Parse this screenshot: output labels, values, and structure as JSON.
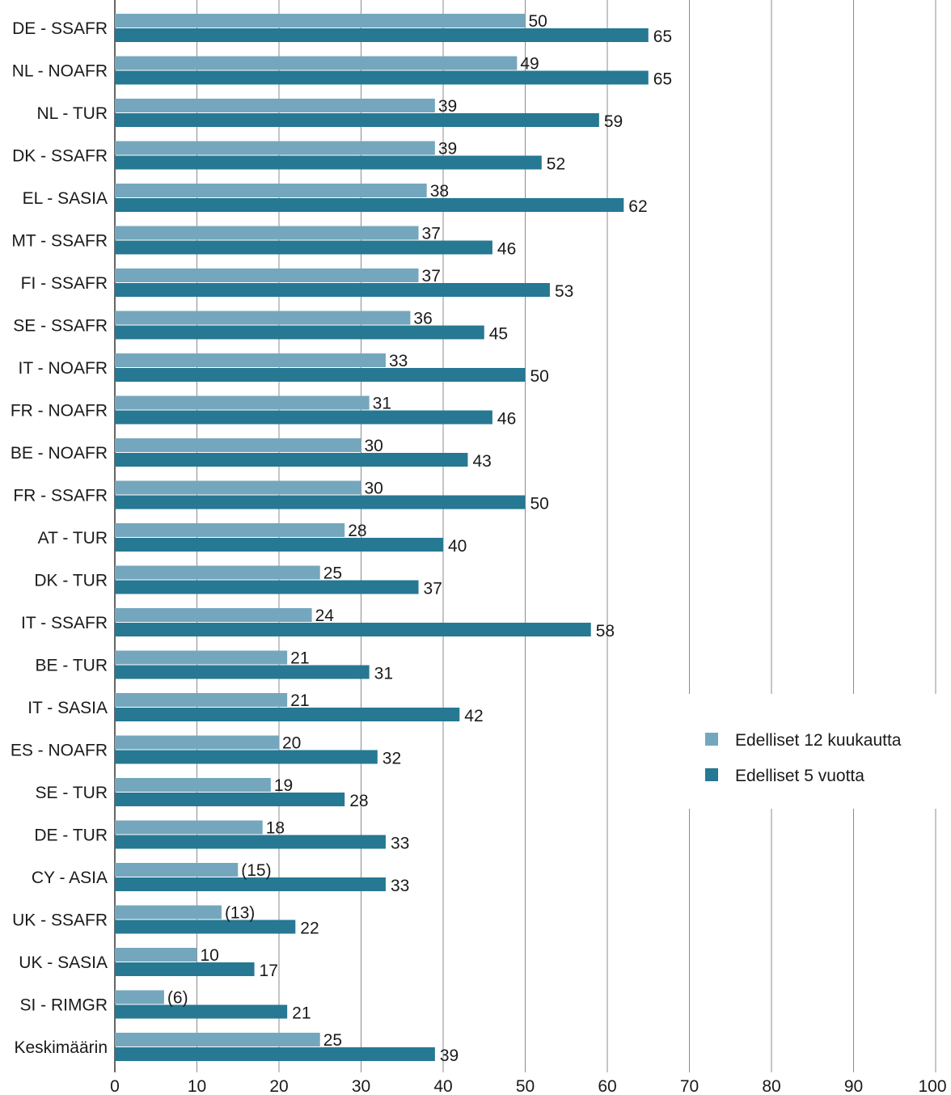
{
  "chart_data": {
    "type": "bar",
    "orientation": "horizontal",
    "title": "",
    "xlabel": "",
    "ylabel": "",
    "xlim": [
      0,
      100
    ],
    "ticks": [
      0,
      10,
      20,
      30,
      40,
      50,
      60,
      70,
      80,
      90,
      100
    ],
    "grid": true,
    "legend_position": "right",
    "categories": [
      "DE - SSAFR",
      "NL - NOAFR",
      "NL - TUR",
      "DK - SSAFR",
      "EL - SASIA",
      "MT - SSAFR",
      "FI - SSAFR",
      "SE - SSAFR",
      "IT - NOAFR",
      "FR - NOAFR",
      "BE - NOAFR",
      "FR - SSAFR",
      "AT - TUR",
      "DK - TUR",
      "IT - SSAFR",
      "BE - TUR",
      "IT - SASIA",
      "ES - NOAFR",
      "SE - TUR",
      "DE - TUR",
      "CY - ASIA",
      "UK - SSAFR",
      "UK - SASIA",
      "SI - RIMGR",
      "Keskimäärin"
    ],
    "series": [
      {
        "name": "Edelliset 12 kuukautta",
        "color": "#74a7bd",
        "values": [
          50,
          49,
          39,
          39,
          38,
          37,
          37,
          36,
          33,
          31,
          30,
          30,
          28,
          25,
          24,
          21,
          21,
          20,
          19,
          18,
          15,
          13,
          10,
          6,
          25
        ],
        "labels": [
          "50",
          "49",
          "39",
          "39",
          "38",
          "37",
          "37",
          "36",
          "33",
          "31",
          "30",
          "30",
          "28",
          "25",
          "24",
          "21",
          "21",
          "20",
          "19",
          "18",
          "(15)",
          "(13)",
          "10",
          "(6)",
          "25"
        ]
      },
      {
        "name": "Edelliset 5 vuotta",
        "color": "#267893",
        "values": [
          65,
          65,
          59,
          52,
          62,
          46,
          53,
          45,
          50,
          46,
          43,
          50,
          40,
          37,
          58,
          31,
          42,
          32,
          28,
          33,
          33,
          22,
          17,
          21,
          39
        ],
        "labels": [
          "65",
          "65",
          "59",
          "52",
          "62",
          "46",
          "53",
          "45",
          "50",
          "46",
          "43",
          "50",
          "40",
          "37",
          "58",
          "31",
          "42",
          "32",
          "28",
          "33",
          "33",
          "22",
          "17",
          "21",
          "39"
        ]
      }
    ]
  }
}
